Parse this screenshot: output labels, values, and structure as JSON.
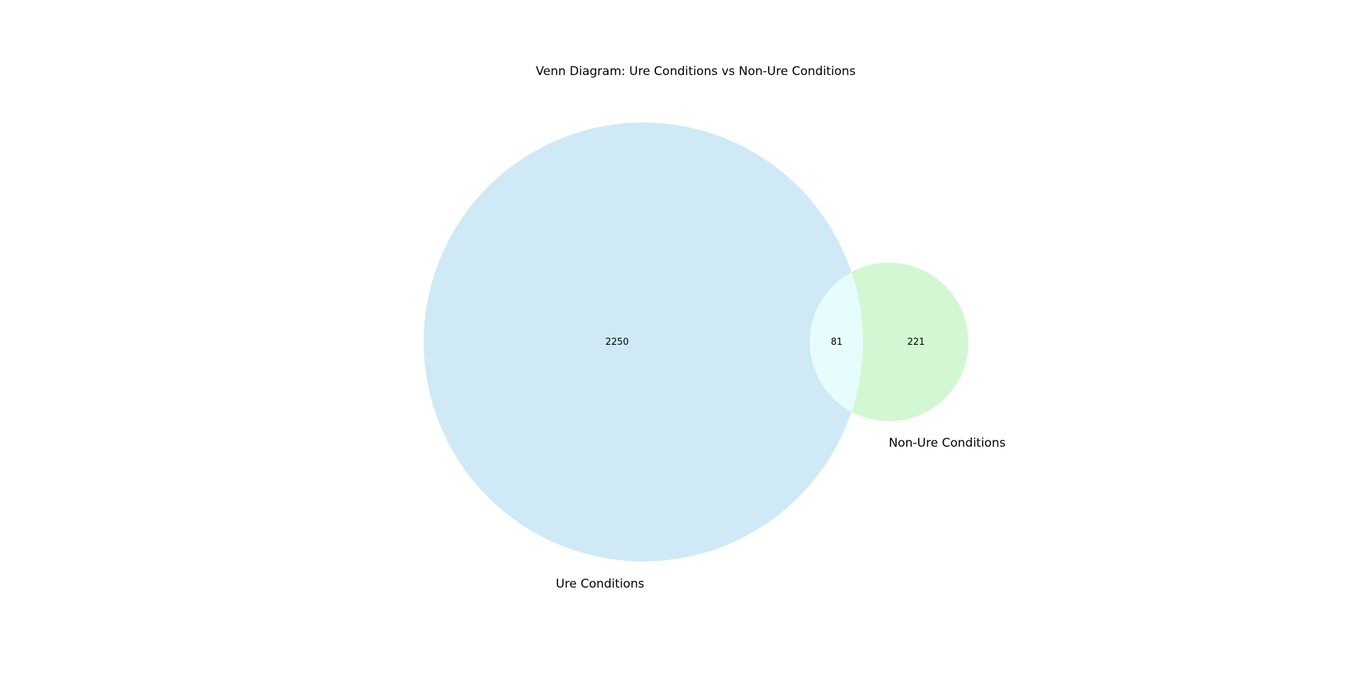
{
  "title": "Venn Diagram: Ure Conditions vs Non-Ure Conditions",
  "sets": [
    {
      "name": "Ure Conditions",
      "only_count": "2250",
      "color": "#cfeaf6"
    },
    {
      "name": "Non-Ure Conditions",
      "only_count": "221",
      "color": "#d3f7d3"
    }
  ],
  "intersection": {
    "count": "81",
    "color": "#e7fdfd"
  }
}
